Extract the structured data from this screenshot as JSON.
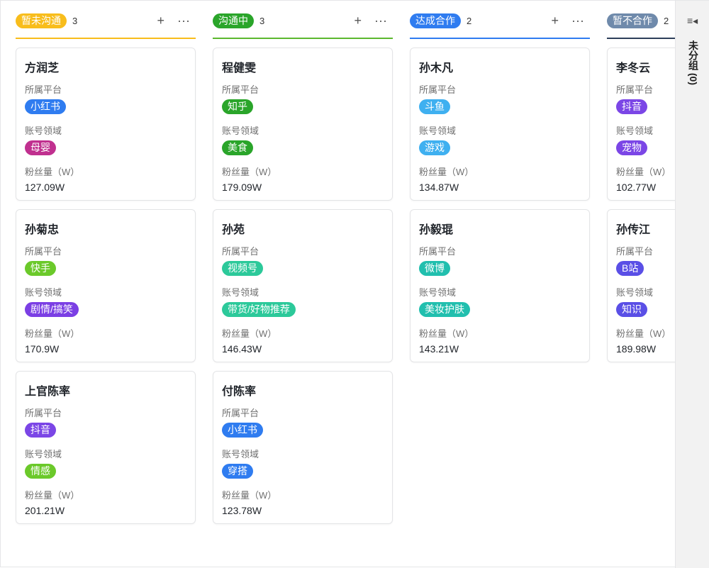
{
  "columns": [
    {
      "title": "暂未沟通",
      "count": "3",
      "color": "#f8bd1c",
      "line": "#f8bd1c",
      "cards": [
        {
          "name": "方润芝",
          "platform": "小红书",
          "pcolor": "#2f7cf0",
          "domain": "母婴",
          "dcolor": "#c0308f",
          "fans": "127.09W"
        },
        {
          "name": "孙菊忠",
          "platform": "快手",
          "pcolor": "#6bc92a",
          "domain": "剧情/搞笑",
          "dcolor": "#7b3fe4",
          "fans": "170.9W"
        },
        {
          "name": "上官陈率",
          "platform": "抖音",
          "pcolor": "#7b46e6",
          "domain": "情感",
          "dcolor": "#6bc92a",
          "fans": "201.21W"
        }
      ]
    },
    {
      "title": "沟通中",
      "count": "3",
      "color": "#2aa52a",
      "line": "#5cb82e",
      "cards": [
        {
          "name": "程健雯",
          "platform": "知乎",
          "pcolor": "#2aa52a",
          "domain": "美食",
          "dcolor": "#2aa52a",
          "fans": "179.09W"
        },
        {
          "name": "孙苑",
          "platform": "视频号",
          "pcolor": "#2cc99a",
          "domain": "带货/好物推荐",
          "dcolor": "#2cc99a",
          "fans": "146.43W"
        },
        {
          "name": "付陈率",
          "platform": "小红书",
          "pcolor": "#2f7cf0",
          "domain": "穿搭",
          "dcolor": "#2f7cf0",
          "fans": "123.78W"
        }
      ]
    },
    {
      "title": "达成合作",
      "count": "2",
      "color": "#2f7cf0",
      "line": "#2f7cf0",
      "cards": [
        {
          "name": "孙木凡",
          "platform": "斗鱼",
          "pcolor": "#3fb0f0",
          "domain": "游戏",
          "dcolor": "#3fb0f0",
          "fans": "134.87W"
        },
        {
          "name": "孙毅琨",
          "platform": "微博",
          "pcolor": "#21bfae",
          "domain": "美妆护肤",
          "dcolor": "#21bfae",
          "fans": "143.21W"
        }
      ]
    },
    {
      "title": "暂不合作",
      "count": "2",
      "color": "#6f8aab",
      "line": "#2d3e5a",
      "cards": [
        {
          "name": "李冬云",
          "platform": "抖音",
          "pcolor": "#7b46e6",
          "domain": "宠物",
          "dcolor": "#7b46e6",
          "fans": "102.77W"
        },
        {
          "name": "孙传江",
          "platform": "B站",
          "pcolor": "#5a4fe6",
          "domain": "知识",
          "dcolor": "#5a4fe6",
          "fans": "189.98W"
        }
      ]
    }
  ],
  "labels": {
    "platform": "所属平台",
    "domain": "账号领域",
    "fans": "粉丝量（W）"
  },
  "actions": {
    "add": "+",
    "more": "···"
  },
  "sidebar": {
    "icon": "collapse-list-icon",
    "glyph": "≡◂",
    "title": "未分组 (0)"
  }
}
